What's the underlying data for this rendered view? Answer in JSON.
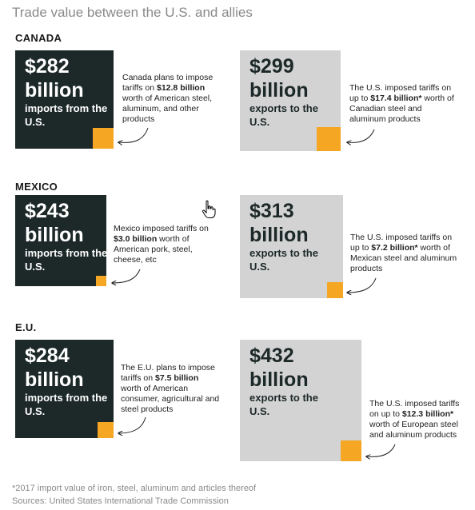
{
  "title": "Trade value between the U.S. and allies",
  "chart_data": {
    "type": "area",
    "groups": [
      {
        "country": "CANADA",
        "imports": {
          "amount": "$282",
          "unit": "billion",
          "label": "imports from the U.S.",
          "value": 282
        },
        "exports": {
          "amount": "$299",
          "unit": "billion",
          "label": "exports to the U.S.",
          "value": 299
        },
        "tariff_on_us": {
          "pre": "Canada plans to impose tariffs on ",
          "bold": "$12.8 billion",
          "post": " worth of American steel, aluminum, and other products",
          "value": 12.8
        },
        "tariff_by_us": {
          "pre": "The U.S. imposed tariffs on up to ",
          "bold": "$17.4 billion*",
          "post": " worth of Canadian steel and aluminum products",
          "value": 17.4
        }
      },
      {
        "country": "MEXICO",
        "imports": {
          "amount": "$243",
          "unit": "billion",
          "label": "imports from the U.S.",
          "value": 243
        },
        "exports": {
          "amount": "$313",
          "unit": "billion",
          "label": "exports to the U.S.",
          "value": 313
        },
        "tariff_on_us": {
          "pre": "Mexico imposed tariffs on ",
          "bold": "$3.0 billion",
          "post": " worth of American pork, steel, cheese, etc",
          "value": 3.0
        },
        "tariff_by_us": {
          "pre": "The U.S. imposed tariffs on up to ",
          "bold": "$7.2 billion*",
          "post": " worth of Mexican steel and aluminum products",
          "value": 7.2
        }
      },
      {
        "country": "E.U.",
        "imports": {
          "amount": "$284",
          "unit": "billion",
          "label": "imports from the U.S.",
          "value": 284
        },
        "exports": {
          "amount": "$432",
          "unit": "billion",
          "label": "exports to the U.S.",
          "value": 432
        },
        "tariff_on_us": {
          "pre": "The E.U. plans to impose tariffs on ",
          "bold": "$7.5 billion",
          "post": " worth of American consumer, agricultural and steel products",
          "value": 7.5
        },
        "tariff_by_us": {
          "pre": "The U.S. imposed tariffs on up to ",
          "bold": "$12.3 billion*",
          "post": " worth of European steel and aluminum products",
          "value": 12.3
        }
      }
    ],
    "colors": {
      "imports": "#1d2828",
      "exports": "#d3d3d3",
      "tariff": "#f5a623"
    }
  },
  "footer": {
    "note": "*2017 import value of iron, steel, aluminum and articles thereof",
    "source": "Sources: United States International Trade Commission"
  }
}
